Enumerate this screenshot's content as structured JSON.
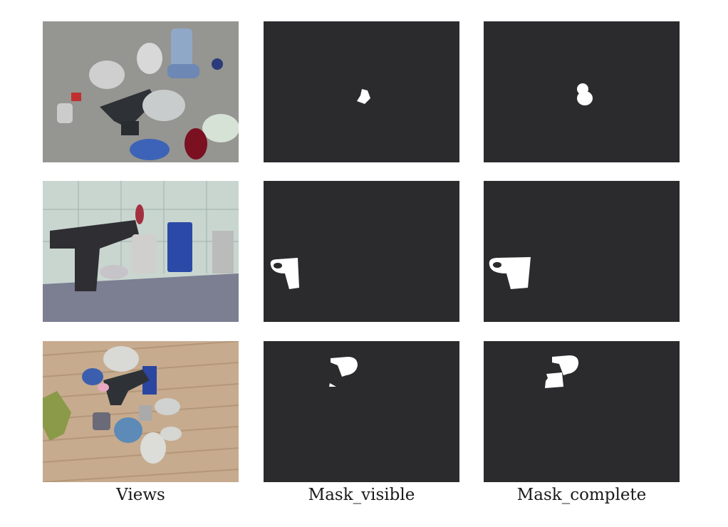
{
  "columns": [
    {
      "label": "Views"
    },
    {
      "label": "Mask_visible"
    },
    {
      "label": "Mask_complete"
    }
  ],
  "colors": {
    "mask_background": "#2b2b2e",
    "mask_foreground": "#ffffff"
  }
}
